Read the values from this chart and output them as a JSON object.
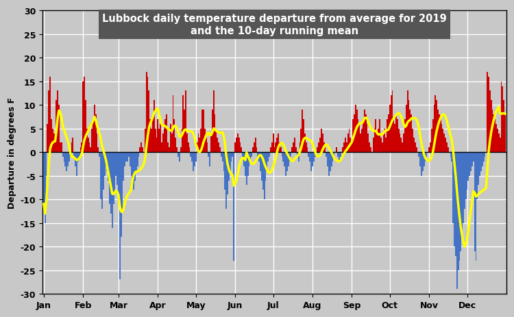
{
  "title_line1": "Lubbock daily temperature departure from average for 2019",
  "title_line2": "and the 10-day running mean",
  "ylabel": "Departure in degrees F",
  "ylim": [
    -30,
    30
  ],
  "yticks": [
    -30,
    -25,
    -20,
    -15,
    -10,
    -5,
    0,
    5,
    10,
    15,
    20,
    25,
    30
  ],
  "month_labels": [
    "Jan",
    "Feb",
    "Mar",
    "Apr",
    "May",
    "Jun",
    "Jul",
    "Aug",
    "Sep",
    "Oct",
    "Nov",
    "Dec"
  ],
  "bg_color": "#c8c8c8",
  "plot_bg_color": "#c8c8c8",
  "bar_pos_color": "#cc0000",
  "bar_neg_color": "#4472c4",
  "bar_near_zero_color": "#808080",
  "running_mean_color": "#ffff00",
  "running_mean_linewidth": 2.5,
  "title_bg_color": "#555555",
  "title_text_color": "#ffffff",
  "daily_values": [
    -11,
    -15,
    -5,
    6,
    13,
    16,
    7,
    5,
    4,
    3,
    11,
    13,
    10,
    2,
    2,
    -1,
    -2,
    -3,
    -4,
    -3,
    -2,
    -1,
    2,
    3,
    -1,
    -3,
    -5,
    -2,
    -1,
    1,
    2,
    15,
    16,
    11,
    5,
    3,
    2,
    1,
    5,
    7,
    10,
    8,
    4,
    1,
    -1,
    -10,
    -12,
    -8,
    -5,
    -3,
    -4,
    -6,
    -11,
    -13,
    -16,
    -11,
    -8,
    -5,
    -7,
    -10,
    -27,
    -18,
    -12,
    -6,
    -3,
    -2,
    -2,
    -1,
    -3,
    -5,
    -7,
    -8,
    -6,
    -4,
    -3,
    -1,
    1,
    2,
    1,
    0,
    5,
    17,
    16,
    13,
    7,
    5,
    8,
    11,
    5,
    3,
    7,
    5,
    6,
    2,
    4,
    5,
    7,
    8,
    2,
    1,
    6,
    4,
    12,
    7,
    3,
    1,
    -1,
    -2,
    1,
    5,
    12,
    9,
    13,
    4,
    2,
    1,
    -1,
    -2,
    -4,
    -3,
    -2,
    2,
    4,
    3,
    5,
    9,
    9,
    5,
    3,
    2,
    -1,
    -3,
    4,
    9,
    13,
    8,
    5,
    3,
    2,
    1,
    -1,
    -2,
    -4,
    -8,
    -12,
    -9,
    -6,
    -4,
    -2,
    -1,
    -23,
    2,
    3,
    4,
    3,
    2,
    1,
    -1,
    -3,
    -5,
    -7,
    -5,
    -3,
    -2,
    -1,
    1,
    2,
    3,
    1,
    -1,
    -2,
    -4,
    -6,
    -8,
    -10,
    -6,
    -4,
    -2,
    -1,
    1,
    2,
    4,
    1,
    2,
    3,
    4,
    2,
    1,
    -1,
    -2,
    -3,
    -5,
    -4,
    -3,
    -2,
    -1,
    1,
    2,
    3,
    1,
    -1,
    -2,
    2,
    5,
    9,
    7,
    4,
    2,
    1,
    -1,
    -2,
    -4,
    -3,
    -2,
    -1,
    0,
    1,
    2,
    3,
    5,
    4,
    2,
    1,
    -1,
    -3,
    -5,
    -4,
    -3,
    -2,
    -1,
    0,
    1,
    -1,
    -2,
    -1,
    0,
    1,
    2,
    3,
    2,
    4,
    5,
    3,
    2,
    7,
    8,
    10,
    9,
    7,
    6,
    4,
    5,
    7,
    9,
    8,
    6,
    4,
    2,
    1,
    0,
    3,
    5,
    7,
    4,
    5,
    7,
    3,
    2,
    4,
    5,
    3,
    7,
    8,
    10,
    12,
    13,
    7,
    6,
    8,
    7,
    5,
    4,
    3,
    2,
    4,
    7,
    10,
    13,
    11,
    9,
    8,
    5,
    3,
    2,
    1,
    0,
    -1,
    -3,
    -5,
    -4,
    -3,
    -2,
    -1,
    0,
    1,
    2,
    5,
    7,
    10,
    12,
    11,
    9,
    8,
    7,
    6,
    5,
    4,
    3,
    2,
    1,
    0,
    -1,
    -2,
    -15,
    -20,
    -22,
    -29,
    -25,
    -23,
    -21,
    -18,
    -15,
    -12,
    -10,
    -8,
    -6,
    -5,
    -4,
    -3,
    -2,
    -21,
    -23,
    -10,
    -7,
    -5,
    -4,
    -3,
    -2,
    -1,
    0,
    17,
    16,
    13,
    11,
    9,
    8,
    7,
    6,
    5,
    4,
    3,
    15,
    14,
    11,
    8
  ]
}
